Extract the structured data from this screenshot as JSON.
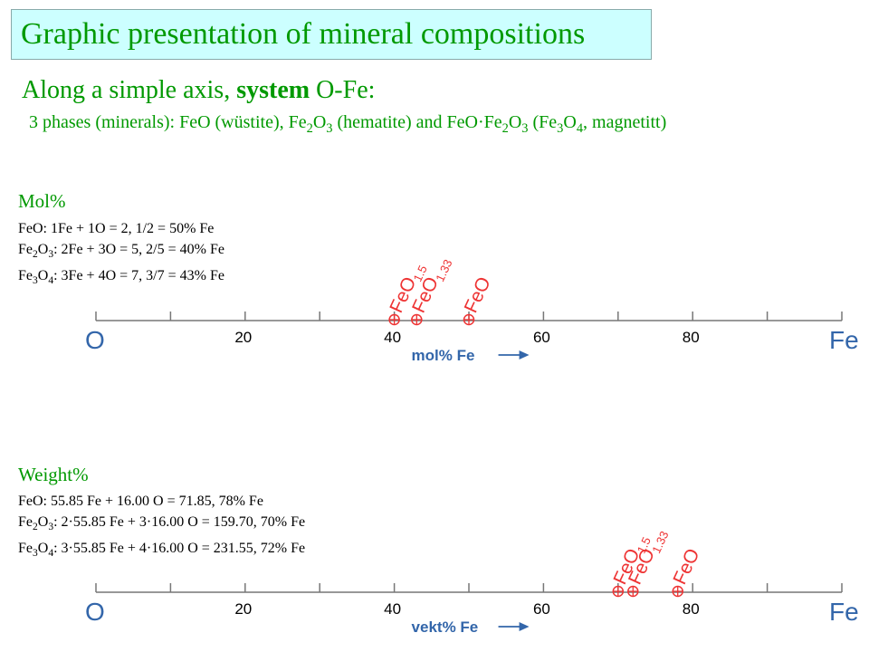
{
  "title": "Graphic presentation of mineral compositions",
  "subtitle": {
    "prefix": "Along a simple axis, ",
    "bold": "system",
    "suffix": " O-Fe:"
  },
  "phases_line": {
    "p1": "3 phases (minerals): FeO (wüstite), Fe",
    "s1": "2",
    "p2": "O",
    "s2": "3",
    "p3": " (hematite) and FeO·Fe",
    "s3": "2",
    "p4": "O",
    "s4": "3",
    "p5": " (Fe",
    "s5": "3",
    "p6": "O",
    "s6": "4",
    "p7": ", magnetitt)"
  },
  "mol_section": {
    "heading": "Mol%",
    "line1": "FeO: 1Fe + 1O = 2,   1/2 = 50% Fe",
    "line2": {
      "a": "Fe",
      "s1": "2",
      "b": "O",
      "s2": "3",
      "c": ": 2Fe + 3O = 5,  2/5 = 40% Fe"
    },
    "line3": {
      "a": "Fe",
      "s1": "3",
      "b": "O",
      "s2": "4",
      "c": ": 3Fe + 4O = 7,  3/7 = 43% Fe"
    }
  },
  "weight_section": {
    "heading": "Weight%",
    "line1": "FeO: 55.85 Fe + 16.00 O = 71.85,  78% Fe",
    "line2": {
      "a": "Fe",
      "s1": "2",
      "b": "O",
      "s2": "3",
      "c": ": 2·55.85 Fe + 3·16.00 O = 159.70,  70% Fe"
    },
    "line3": {
      "a": "Fe",
      "s1": "3",
      "b": "O",
      "s2": "4",
      "c": ": 3·55.85 Fe + 4·16.00 O = 231.55,  72% Fe"
    }
  },
  "colors": {
    "green": "#009900",
    "blue": "#3366aa",
    "red": "#ee3333",
    "title_bg": "#ccffff"
  },
  "axes": [
    {
      "id": "mol",
      "left_label": "O",
      "right_label": "Fe",
      "tick_labels": [
        "20",
        "40",
        "60",
        "80"
      ],
      "unit_label": "mol% Fe",
      "range": [
        0,
        100
      ],
      "markers": [
        {
          "name": "FeO",
          "sub": "1.5",
          "value": 40
        },
        {
          "name": "FeO",
          "sub": "1.33",
          "value": 43
        },
        {
          "name": "FeO",
          "sub": "",
          "value": 50
        }
      ]
    },
    {
      "id": "weight",
      "left_label": "O",
      "right_label": "Fe",
      "tick_labels": [
        "20",
        "40",
        "60",
        "80"
      ],
      "unit_label": "vekt% Fe",
      "range": [
        0,
        100
      ],
      "markers": [
        {
          "name": "FeO",
          "sub": "1.5",
          "value": 70
        },
        {
          "name": "FeO",
          "sub": "1.33",
          "value": 72
        },
        {
          "name": "FeO",
          "sub": "",
          "value": 78
        }
      ]
    }
  ]
}
